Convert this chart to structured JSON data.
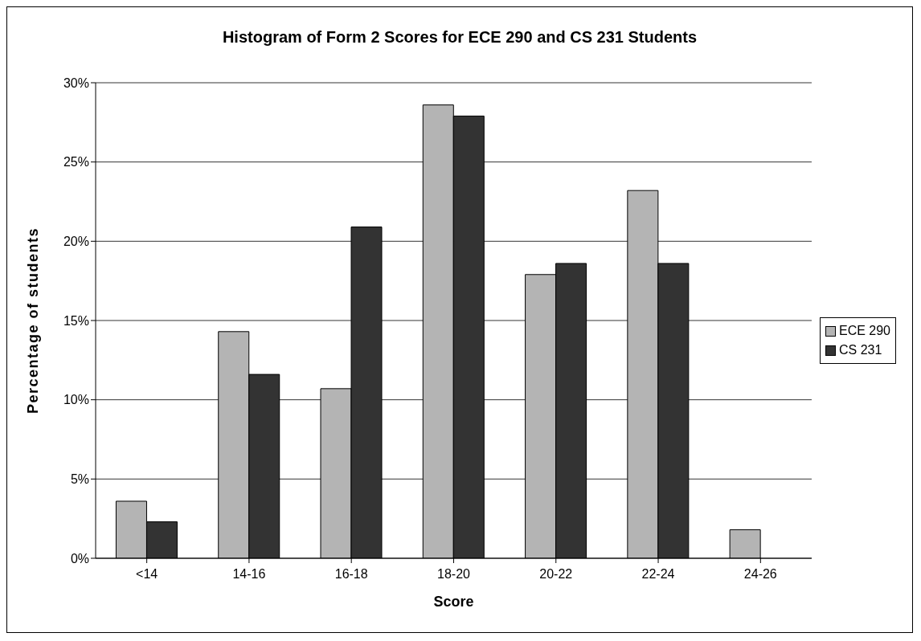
{
  "chart_data": {
    "type": "bar",
    "title": "Histogram of Form 2 Scores for ECE 290 and CS 231 Students",
    "xlabel": "Score",
    "ylabel": "Percentage of students",
    "categories": [
      "<14",
      "14-16",
      "16-18",
      "18-20",
      "20-22",
      "22-24",
      "24-26"
    ],
    "series": [
      {
        "name": "ECE 290",
        "color": "#b4b4b4",
        "values": [
          3.6,
          14.3,
          10.7,
          28.6,
          17.9,
          23.2,
          1.8
        ]
      },
      {
        "name": "CS 231",
        "color": "#333333",
        "values": [
          2.3,
          11.6,
          20.9,
          27.9,
          18.6,
          18.6,
          0
        ]
      }
    ],
    "ylim": [
      0,
      30
    ],
    "yticks": [
      {
        "value": 0,
        "label": "0%"
      },
      {
        "value": 5,
        "label": "5%"
      },
      {
        "value": 10,
        "label": "10%"
      },
      {
        "value": 15,
        "label": "15%"
      },
      {
        "value": 20,
        "label": "20%"
      },
      {
        "value": 25,
        "label": "25%"
      },
      {
        "value": 30,
        "label": "30%"
      }
    ],
    "grid": "y",
    "legend": "right"
  }
}
